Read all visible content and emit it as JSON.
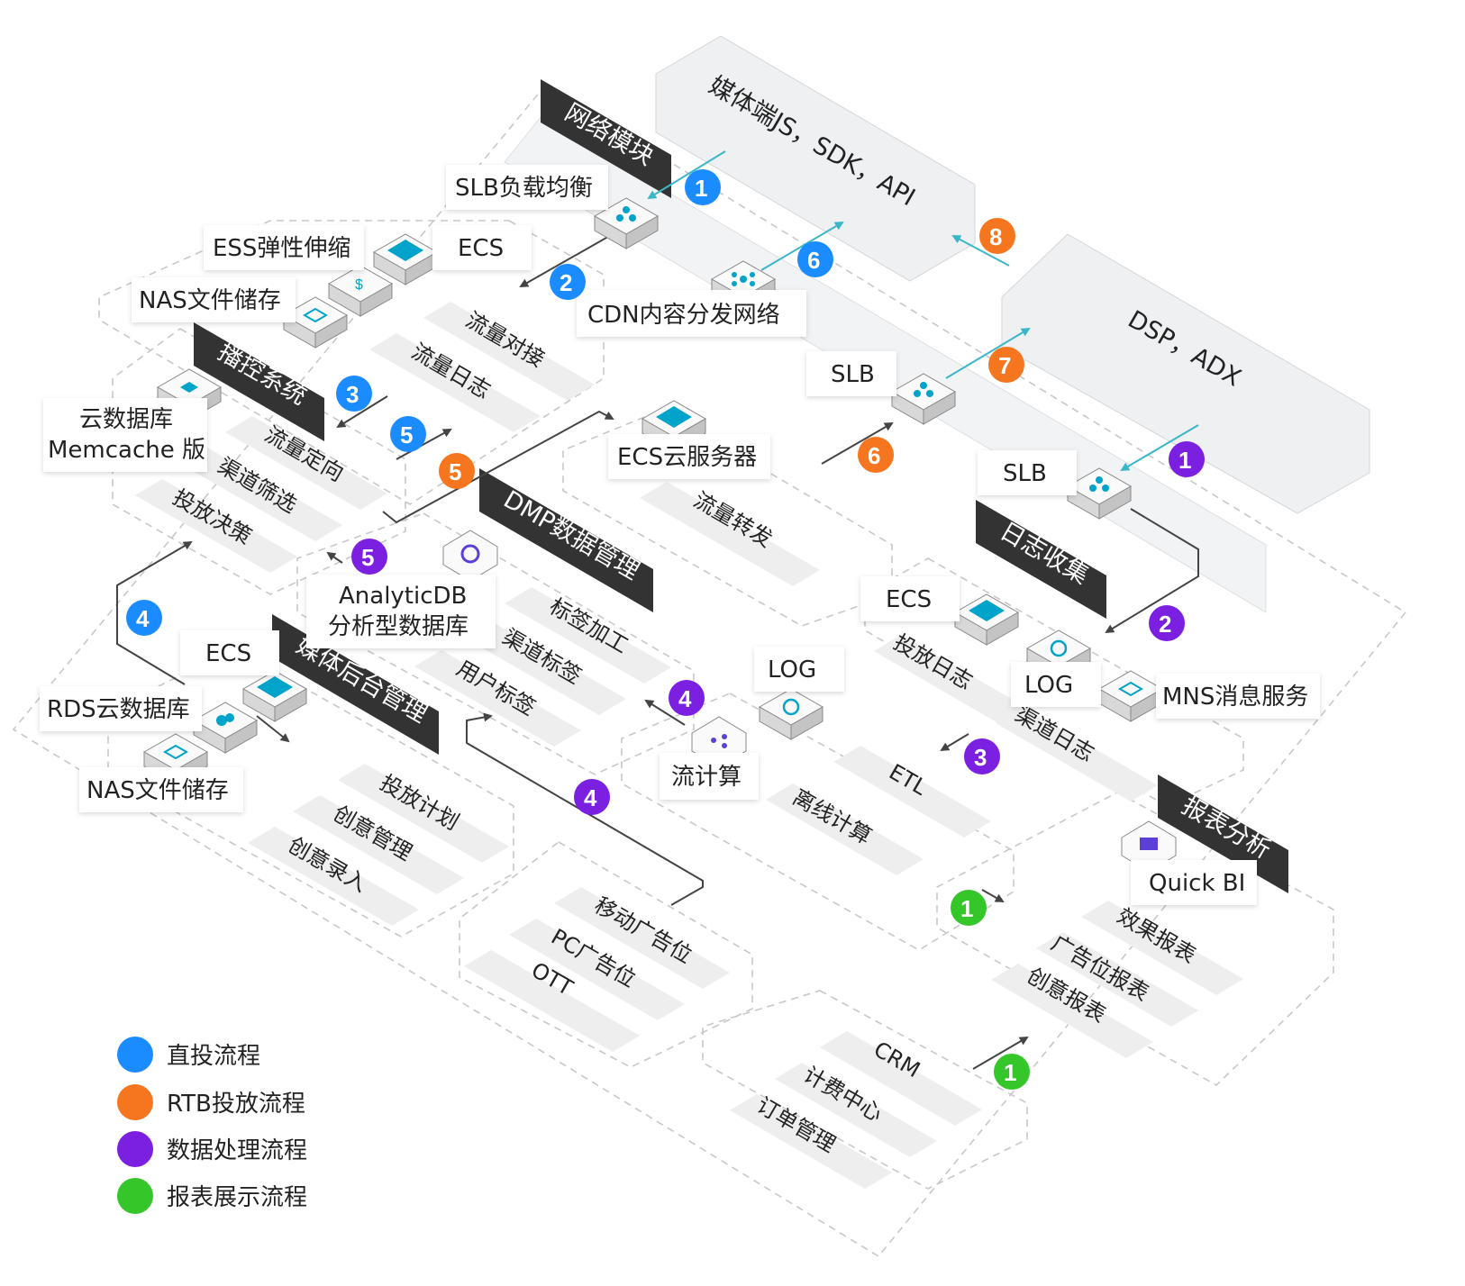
{
  "colors": {
    "blue": "#1a8cff",
    "orange": "#f5761e",
    "purple": "#7b1fe0",
    "green": "#35c62a",
    "teal_arrow": "#3ab6c9",
    "dark_arrow": "#444444",
    "header_bg": "#333333",
    "item_bg": "#eeeeee",
    "panel_bg": "#eef0f2"
  },
  "top_panels": {
    "media": "媒体端JS，SDK，API",
    "dsp": "DSP，ADX"
  },
  "modules": {
    "network": "网络模块",
    "playback": "播控系统",
    "dmp": "DMP数据管理",
    "media_backend": "媒体后台管理",
    "log_collect": "日志收集",
    "report": "报表分析"
  },
  "items": {
    "network": [
      "流量对接",
      "流量日志"
    ],
    "playback": [
      "流量定向",
      "渠道筛选",
      "投放决策"
    ],
    "dmp": [
      "标签加工",
      "渠道标签",
      "用户标签"
    ],
    "ecs_forward": [
      "流量转发"
    ],
    "media_backend": [
      "投放计划",
      "创意管理",
      "创意录入"
    ],
    "ad_slots": [
      "移动广告位",
      "PC广告位",
      "OTT"
    ],
    "log_collect": [
      "投放日志",
      "渠道日志"
    ],
    "compute": [
      "ETL",
      "离线计算"
    ],
    "report": [
      "效果报表",
      "广告位报表",
      "创意报表"
    ],
    "crm": [
      "CRM",
      "计费中心",
      "订单管理"
    ]
  },
  "labels": {
    "slb_lb": "SLB负载均衡",
    "ess": "ESS弹性伸缩",
    "ecs_top": "ECS",
    "nas_top": "NAS文件储存",
    "cdn": "CDN内容分发网络",
    "slb_mid": "SLB",
    "memcache_1": "云数据库",
    "memcache_2": "Memcache 版",
    "ecs_server": "ECS云服务器",
    "slb_right": "SLB",
    "analyticdb_1": "AnalyticDB",
    "analyticdb_2": "分析型数据库",
    "ecs_left": "ECS",
    "rds": "RDS云数据库",
    "nas_left": "NAS文件储存",
    "ecs_right": "ECS",
    "log_mid": "LOG",
    "log_right": "LOG",
    "mns": "MNS消息服务",
    "stream": "流计算",
    "quickbi": "Quick BI"
  },
  "badges": {
    "b1a": "1",
    "b2a": "2",
    "b3a": "3",
    "b4a": "4",
    "b5a": "5",
    "o5": "5",
    "o6a": "6",
    "o6b": "6",
    "o7": "7",
    "o8": "8",
    "p1": "1",
    "p2": "2",
    "p3": "3",
    "p4a": "4",
    "p4b": "4",
    "p5": "5",
    "g1a": "1",
    "g1b": "1"
  },
  "legend": [
    {
      "label": "直投流程",
      "color": "#1a8cff"
    },
    {
      "label": "RTB投放流程",
      "color": "#f5761e"
    },
    {
      "label": "数据处理流程",
      "color": "#7b1fe0"
    },
    {
      "label": "报表展示流程",
      "color": "#35c62a"
    }
  ]
}
